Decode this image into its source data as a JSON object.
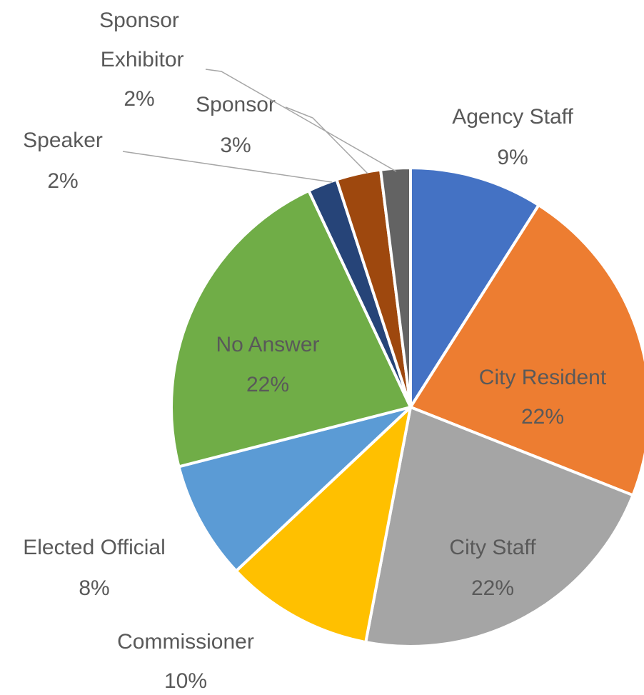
{
  "chart_data": {
    "type": "pie",
    "categories": [
      "Agency Staff",
      "City Resident",
      "City Staff",
      "Commissioner",
      "Elected Official",
      "No Answer",
      "Speaker",
      "Sponsor",
      "Sponsor Exhibitor"
    ],
    "values": [
      9,
      22,
      22,
      10,
      8,
      22,
      2,
      3,
      2
    ],
    "value_labels": [
      "9%",
      "22%",
      "22%",
      "10%",
      "8%",
      "22%",
      "2%",
      "3%",
      "2%"
    ],
    "colors": [
      "#4472c4",
      "#ed7d31",
      "#a5a5a5",
      "#ffc000",
      "#5b9bd5",
      "#70ad47",
      "#264478",
      "#9e480e",
      "#636363"
    ]
  }
}
